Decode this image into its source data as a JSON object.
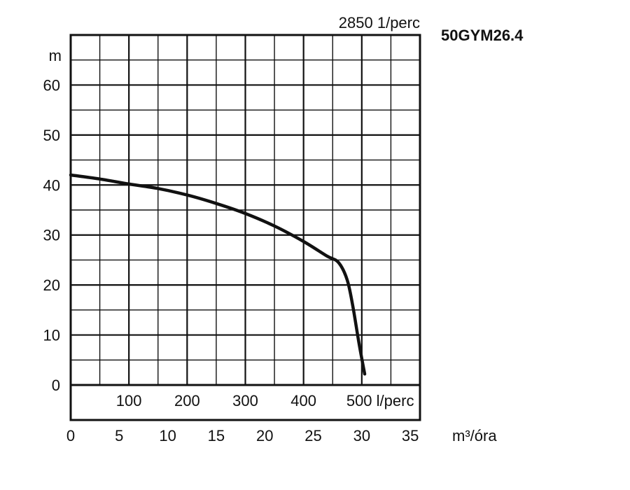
{
  "chart_data": {
    "type": "line",
    "title": "50GYM26.4",
    "speed_label": "2850 1/perc",
    "ylabel": "m",
    "ylim": [
      0,
      70
    ],
    "y_ticks": [
      0,
      10,
      20,
      30,
      40,
      50,
      60
    ],
    "grid": true,
    "x_primary": {
      "unit": "l/perc",
      "range": [
        0,
        600
      ],
      "ticks": [
        100,
        200,
        300,
        400,
        500
      ],
      "tick_labels": [
        "100",
        "200",
        "300",
        "400",
        "500 l/perc"
      ]
    },
    "x_secondary": {
      "unit": "m³/óra",
      "range": [
        0,
        36
      ],
      "ticks": [
        0,
        5,
        10,
        15,
        20,
        25,
        30,
        35
      ],
      "tick_labels": [
        "0",
        "5",
        "10",
        "15",
        "20",
        "25",
        "30",
        "35"
      ]
    },
    "series": [
      {
        "name": "",
        "x_unit": "l/perc",
        "x": [
          0,
          50,
          100,
          150,
          200,
          250,
          300,
          350,
          400,
          440,
          460,
          475,
          485,
          495,
          505
        ],
        "y": [
          42,
          41.2,
          40.2,
          39.3,
          38,
          36.3,
          34.3,
          31.8,
          28.7,
          25.8,
          24.5,
          21,
          15.5,
          8.5,
          2.2
        ]
      }
    ]
  }
}
